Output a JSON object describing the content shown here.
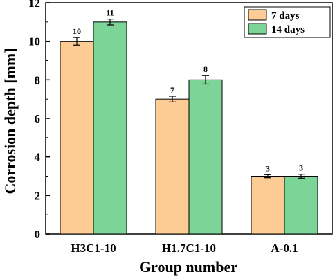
{
  "chart_data": {
    "type": "bar",
    "xlabel": "Group number",
    "ylabel": "Corrosion depth [mm]",
    "categories": [
      "H3C1-10",
      "H1.7C1-10",
      "A-0.1"
    ],
    "ylim": [
      0,
      12
    ],
    "yticks": [
      0,
      2,
      4,
      6,
      8,
      10,
      12
    ],
    "grid": false,
    "legend_position": "top-right",
    "series": [
      {
        "name": "7 days",
        "color": "#FDCB94",
        "values": [
          10,
          7,
          3
        ],
        "errors": [
          0.2,
          0.15,
          0.08
        ],
        "labels": [
          "10",
          "7",
          "3"
        ]
      },
      {
        "name": "14 days",
        "color": "#7CD497",
        "values": [
          11,
          8,
          3
        ],
        "errors": [
          0.15,
          0.22,
          0.1
        ],
        "labels": [
          "11",
          "8",
          "3"
        ]
      }
    ]
  }
}
